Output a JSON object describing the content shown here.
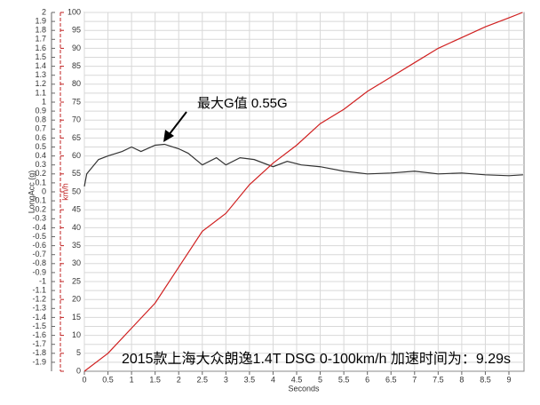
{
  "chart_data": {
    "type": "line",
    "xlabel": "Seconds",
    "ylabel": "LongAcc (g)",
    "y2label": "km/h",
    "annotation": "最大G值 0.55G",
    "caption": "2015款上海大众朗逸1.4T DSG 0-100km/h 加速时间为：9.29s",
    "xlim": [
      0,
      9.32
    ],
    "ylim": [
      -2,
      2
    ],
    "y2lim": [
      0,
      100
    ],
    "xticks": [
      0,
      0.5,
      1,
      1.5,
      2,
      2.5,
      3,
      3.5,
      4,
      4.5,
      5,
      5.5,
      6,
      6.5,
      7,
      7.5,
      8,
      8.5,
      9
    ],
    "yticks": [
      2,
      1.9,
      1.8,
      1.7,
      1.6,
      1.5,
      1.4,
      1.3,
      1.2,
      1.1,
      1,
      0.9,
      0.8,
      0.7,
      0.6,
      0.5,
      0.4,
      0.3,
      0.2,
      0.1,
      0,
      -0.1,
      -0.2,
      -0.3,
      -0.4,
      -0.5,
      -0.6,
      -0.7,
      -0.8,
      -0.9,
      -1,
      -1.1,
      -1.2,
      -1.3,
      -1.4,
      -1.5,
      -1.6,
      -1.7,
      -1.8,
      -1.9
    ],
    "y2ticks": [
      0,
      5,
      10,
      15,
      20,
      25,
      30,
      35,
      40,
      45,
      50,
      55,
      60,
      65,
      70,
      75,
      80,
      85,
      90,
      95,
      100
    ],
    "grid": true,
    "series": [
      {
        "name": "LongAcc",
        "color": "#333333",
        "x": [
          0,
          0.05,
          0.3,
          0.5,
          0.8,
          1,
          1.2,
          1.5,
          1.7,
          2,
          2.2,
          2.5,
          2.8,
          3,
          3.3,
          3.6,
          4,
          4.3,
          4.6,
          5,
          5.5,
          6,
          6.5,
          7,
          7.5,
          8,
          8.5,
          9,
          9.3
        ],
        "values": [
          0.06,
          0.2,
          0.36,
          0.4,
          0.45,
          0.5,
          0.45,
          0.52,
          0.53,
          0.48,
          0.43,
          0.3,
          0.38,
          0.3,
          0.38,
          0.36,
          0.28,
          0.34,
          0.3,
          0.28,
          0.23,
          0.2,
          0.21,
          0.23,
          0.2,
          0.21,
          0.19,
          0.18,
          0.19
        ]
      },
      {
        "name": "km/h",
        "color": "#d02020",
        "axis": "y2",
        "x": [
          0,
          0.5,
          1,
          1.5,
          2,
          2.5,
          3,
          3.5,
          4,
          4.5,
          5,
          5.5,
          6,
          6.5,
          7,
          7.5,
          8,
          8.5,
          9,
          9.29
        ],
        "values": [
          0,
          5,
          12,
          19,
          29,
          39,
          44,
          52,
          58,
          63,
          69,
          73,
          78,
          82,
          86,
          90,
          93,
          96,
          98.5,
          100
        ]
      }
    ]
  }
}
